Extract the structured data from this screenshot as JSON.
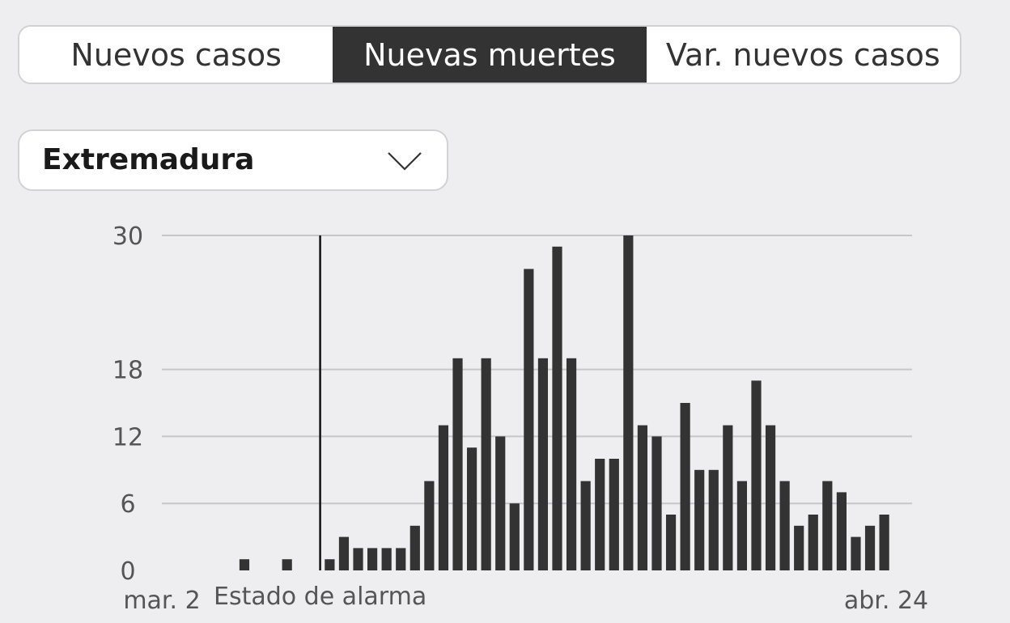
{
  "tabs": [
    {
      "label": "Nuevos casos",
      "active": false
    },
    {
      "label": "Nuevas muertes",
      "active": true
    },
    {
      "label": "Var. nuevos casos",
      "active": false
    }
  ],
  "region_select": {
    "value": "Extremadura",
    "icon": "chevron-down-icon"
  },
  "chart_data": {
    "type": "bar",
    "title": "",
    "xlabel": "",
    "ylabel": "",
    "x_start_label": "mar. 2",
    "x_end_label": "abr. 24",
    "ylim": [
      0,
      30
    ],
    "yticks": [
      0,
      6,
      12,
      18,
      30
    ],
    "grid": true,
    "bar_color": "#333333",
    "annotation": {
      "label": "Estado de alarma",
      "date": "mar. 14"
    },
    "categories": [
      "mar. 2",
      "mar. 3",
      "mar. 4",
      "mar. 5",
      "mar. 6",
      "mar. 7",
      "mar. 8",
      "mar. 9",
      "mar. 10",
      "mar. 11",
      "mar. 12",
      "mar. 13",
      "mar. 14",
      "mar. 15",
      "mar. 16",
      "mar. 17",
      "mar. 18",
      "mar. 19",
      "mar. 20",
      "mar. 21",
      "mar. 22",
      "mar. 23",
      "mar. 24",
      "mar. 25",
      "mar. 26",
      "mar. 27",
      "mar. 28",
      "mar. 29",
      "mar. 30",
      "mar. 31",
      "abr. 1",
      "abr. 2",
      "abr. 3",
      "abr. 4",
      "abr. 5",
      "abr. 6",
      "abr. 7",
      "abr. 8",
      "abr. 9",
      "abr. 10",
      "abr. 11",
      "abr. 12",
      "abr. 13",
      "abr. 14",
      "abr. 15",
      "abr. 16",
      "abr. 17",
      "abr. 18",
      "abr. 19",
      "abr. 20",
      "abr. 21",
      "abr. 22",
      "abr. 23",
      "abr. 24"
    ],
    "values": [
      0,
      0,
      0,
      0,
      0,
      0,
      0,
      1,
      0,
      0,
      1,
      0,
      0,
      1,
      3,
      2,
      2,
      2,
      2,
      4,
      8,
      13,
      19,
      11,
      19,
      12,
      6,
      27,
      19,
      29,
      19,
      8,
      10,
      10,
      30,
      13,
      12,
      5,
      15,
      9,
      9,
      13,
      8,
      17,
      13,
      8,
      4,
      5,
      8,
      7,
      3,
      4,
      5,
      0
    ]
  }
}
